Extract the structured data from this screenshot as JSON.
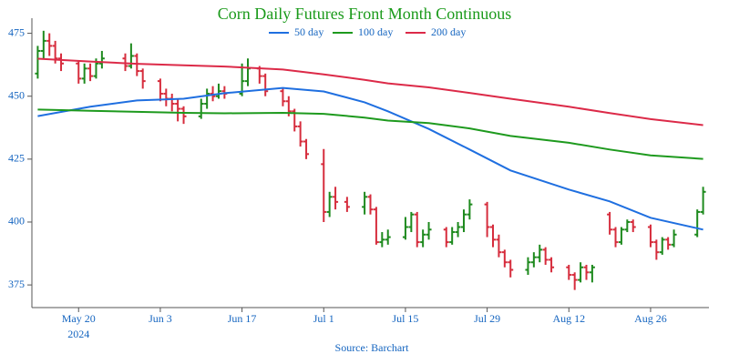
{
  "chart_data": {
    "type": "ohlc",
    "title": "Corn Daily Futures Front Month Continuous",
    "source": "Source: Barchart",
    "xlim": [
      "2024-05-12",
      "2024-09-05"
    ],
    "xticks": [
      {
        "value": "2024-05-20",
        "label": "May 20",
        "sublabel": "2024"
      },
      {
        "value": "2024-06-03",
        "label": "Jun 3"
      },
      {
        "value": "2024-06-17",
        "label": "Jun 17"
      },
      {
        "value": "2024-07-01",
        "label": "Jul 1"
      },
      {
        "value": "2024-07-15",
        "label": "Jul 15"
      },
      {
        "value": "2024-07-29",
        "label": "Jul 29"
      },
      {
        "value": "2024-08-12",
        "label": "Aug 12"
      },
      {
        "value": "2024-08-26",
        "label": "Aug 26"
      }
    ],
    "ylim": [
      366,
      481
    ],
    "yticks": [
      375,
      400,
      425,
      450,
      475
    ],
    "up_color": "#1e8a1e",
    "down_color": "#d62d3d",
    "ohlc": {
      "x": [
        "2024-05-13",
        "2024-05-14",
        "2024-05-15",
        "2024-05-16",
        "2024-05-17",
        "2024-05-20",
        "2024-05-21",
        "2024-05-22",
        "2024-05-23",
        "2024-05-24",
        "2024-05-28",
        "2024-05-29",
        "2024-05-30",
        "2024-05-31",
        "2024-06-03",
        "2024-06-04",
        "2024-06-05",
        "2024-06-06",
        "2024-06-07",
        "2024-06-10",
        "2024-06-11",
        "2024-06-12",
        "2024-06-13",
        "2024-06-14",
        "2024-06-17",
        "2024-06-18",
        "2024-06-20",
        "2024-06-21",
        "2024-06-24",
        "2024-06-25",
        "2024-06-26",
        "2024-06-27",
        "2024-06-28",
        "2024-07-01",
        "2024-07-02",
        "2024-07-03",
        "2024-07-05",
        "2024-07-08",
        "2024-07-09",
        "2024-07-10",
        "2024-07-11",
        "2024-07-12",
        "2024-07-15",
        "2024-07-16",
        "2024-07-17",
        "2024-07-18",
        "2024-07-19",
        "2024-07-22",
        "2024-07-23",
        "2024-07-24",
        "2024-07-25",
        "2024-07-26",
        "2024-07-29",
        "2024-07-30",
        "2024-07-31",
        "2024-08-01",
        "2024-08-02",
        "2024-08-05",
        "2024-08-06",
        "2024-08-07",
        "2024-08-08",
        "2024-08-09",
        "2024-08-12",
        "2024-08-13",
        "2024-08-14",
        "2024-08-15",
        "2024-08-16",
        "2024-08-19",
        "2024-08-20",
        "2024-08-21",
        "2024-08-22",
        "2024-08-23",
        "2024-08-26",
        "2024-08-27",
        "2024-08-28",
        "2024-08-29",
        "2024-08-30",
        "2024-09-03",
        "2024-09-04"
      ],
      "open": [
        459,
        468,
        472,
        470,
        465,
        463,
        457,
        461,
        458,
        463,
        465,
        462,
        466,
        460,
        456,
        451,
        449,
        447,
        445,
        442,
        447,
        451,
        450,
        452,
        451,
        456,
        461,
        458,
        452,
        448,
        444,
        438,
        432,
        423,
        404,
        410,
        408,
        406,
        410,
        405,
        392,
        393,
        394,
        398,
        403,
        392,
        395,
        397,
        392,
        396,
        398,
        403,
        407,
        398,
        393,
        388,
        384,
        381,
        384,
        386,
        389,
        385,
        382,
        379,
        377,
        382,
        380,
        403,
        397,
        392,
        397,
        400,
        398,
        392,
        388,
        393,
        391,
        395,
        404
      ],
      "high": [
        470,
        476,
        475,
        472,
        467,
        464,
        463,
        463,
        465,
        468,
        467,
        471,
        467,
        461,
        457,
        453,
        451,
        449,
        446,
        449,
        453,
        454,
        455,
        454,
        463,
        465,
        462,
        459,
        453,
        450,
        445,
        440,
        433,
        429,
        412,
        414,
        410,
        412,
        411,
        406,
        396,
        397,
        402,
        404,
        404,
        397,
        400,
        398,
        398,
        400,
        405,
        409,
        408,
        399,
        395,
        389,
        385,
        386,
        388,
        391,
        390,
        386,
        383,
        380,
        384,
        383,
        383,
        404,
        398,
        398,
        401,
        401,
        399,
        393,
        394,
        394,
        397,
        405,
        414
      ],
      "low": [
        457,
        465,
        466,
        463,
        460,
        455,
        455,
        456,
        457,
        461,
        460,
        461,
        458,
        453,
        448,
        446,
        444,
        440,
        439,
        441,
        445,
        448,
        449,
        449,
        450,
        454,
        455,
        450,
        446,
        442,
        436,
        430,
        425,
        400,
        402,
        405,
        404,
        403,
        403,
        391,
        390,
        391,
        393,
        396,
        390,
        390,
        393,
        390,
        391,
        394,
        396,
        401,
        394,
        390,
        386,
        382,
        378,
        379,
        382,
        384,
        383,
        380,
        377,
        373,
        376,
        377,
        376,
        395,
        390,
        391,
        396,
        396,
        390,
        385,
        387,
        389,
        390,
        394,
        403
      ],
      "close": [
        468,
        472,
        470,
        465,
        463,
        457,
        461,
        458,
        463,
        465,
        462,
        466,
        460,
        456,
        451,
        449,
        447,
        445,
        442,
        447,
        451,
        450,
        452,
        451,
        456,
        461,
        458,
        452,
        448,
        444,
        438,
        432,
        427,
        404,
        410,
        408,
        406,
        410,
        405,
        392,
        393,
        394,
        398,
        403,
        392,
        395,
        397,
        392,
        396,
        398,
        403,
        407,
        398,
        393,
        388,
        384,
        381,
        384,
        386,
        389,
        385,
        382,
        379,
        377,
        382,
        380,
        382,
        397,
        392,
        397,
        400,
        398,
        392,
        388,
        393,
        391,
        395,
        404,
        412
      ]
    },
    "series": [
      {
        "name": "50 day",
        "color": "#1f6fe0",
        "x": [
          "2024-05-13",
          "2024-05-22",
          "2024-05-30",
          "2024-06-07",
          "2024-06-14",
          "2024-06-24",
          "2024-07-01",
          "2024-07-08",
          "2024-07-12",
          "2024-07-19",
          "2024-07-26",
          "2024-08-02",
          "2024-08-12",
          "2024-08-19",
          "2024-08-26",
          "2024-09-04"
        ],
        "values": [
          442.1,
          445.8,
          448.3,
          449,
          451.2,
          453.3,
          451.9,
          447.6,
          444,
          437,
          428.8,
          420.5,
          412.9,
          408.2,
          401.7,
          397
        ]
      },
      {
        "name": "100 day",
        "color": "#1e9a1e",
        "x": [
          "2024-05-13",
          "2024-05-22",
          "2024-05-30",
          "2024-06-07",
          "2024-06-14",
          "2024-06-24",
          "2024-07-01",
          "2024-07-08",
          "2024-07-12",
          "2024-07-19",
          "2024-07-26",
          "2024-08-02",
          "2024-08-12",
          "2024-08-19",
          "2024-08-26",
          "2024-09-04"
        ],
        "values": [
          444.7,
          444.2,
          443.8,
          443.4,
          443.2,
          443.4,
          443,
          441.5,
          440.3,
          439.3,
          437.2,
          434.2,
          431.5,
          428.8,
          426.5,
          425.1
        ]
      },
      {
        "name": "200 day",
        "color": "#dc2a48",
        "x": [
          "2024-05-13",
          "2024-05-22",
          "2024-05-30",
          "2024-06-07",
          "2024-06-14",
          "2024-06-24",
          "2024-07-01",
          "2024-07-08",
          "2024-07-12",
          "2024-07-19",
          "2024-07-26",
          "2024-08-02",
          "2024-08-12",
          "2024-08-19",
          "2024-08-26",
          "2024-09-04"
        ],
        "values": [
          464.9,
          463.8,
          462.9,
          462.3,
          461.8,
          460.6,
          458.7,
          456.5,
          455.1,
          453.5,
          451.3,
          449,
          445.8,
          443.3,
          440.9,
          438.5
        ]
      }
    ]
  }
}
